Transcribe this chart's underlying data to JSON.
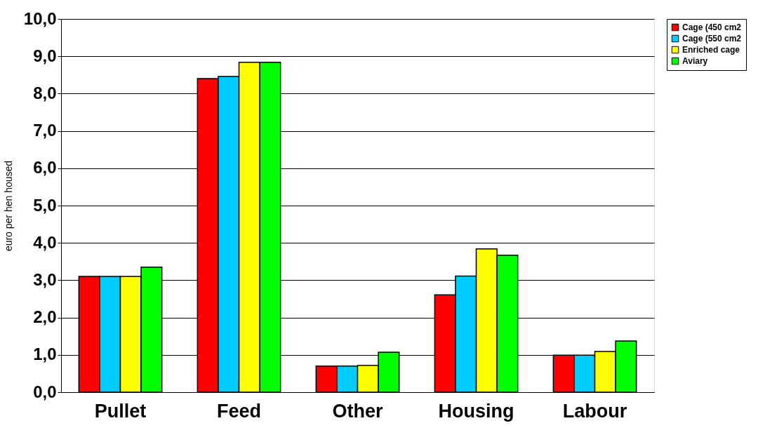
{
  "chart_data": {
    "type": "bar",
    "ylabel": "euro per hen housed",
    "categories": [
      "Pullet",
      "Feed",
      "Other",
      "Housing",
      "Labour"
    ],
    "series": [
      {
        "name": "Cage (450 cm2",
        "color": "#ff0000",
        "values": [
          3.1,
          8.4,
          0.7,
          2.61,
          0.99
        ]
      },
      {
        "name": "Cage (550 cm2",
        "color": "#00ccff",
        "values": [
          3.1,
          8.46,
          0.7,
          3.11,
          0.99
        ]
      },
      {
        "name": "Enriched cage",
        "color": "#ffff00",
        "values": [
          3.1,
          8.84,
          0.72,
          3.84,
          1.09
        ]
      },
      {
        "name": "Aviary",
        "color": "#00ff00",
        "values": [
          3.35,
          8.84,
          1.07,
          3.67,
          1.37
        ]
      }
    ],
    "ylim": [
      0,
      10
    ],
    "yticks": [
      {
        "value": 0,
        "label": "0,0"
      },
      {
        "value": 1,
        "label": "1,0"
      },
      {
        "value": 2,
        "label": "2,0"
      },
      {
        "value": 3,
        "label": "3,0"
      },
      {
        "value": 4,
        "label": "4,0"
      },
      {
        "value": 5,
        "label": "5,0"
      },
      {
        "value": 6,
        "label": "6,0"
      },
      {
        "value": 7,
        "label": "7,0"
      },
      {
        "value": 8,
        "label": "8,0"
      },
      {
        "value": 9,
        "label": "9,0"
      },
      {
        "value": 10,
        "label": "10,0"
      }
    ],
    "grid": "y",
    "legend": "right"
  }
}
